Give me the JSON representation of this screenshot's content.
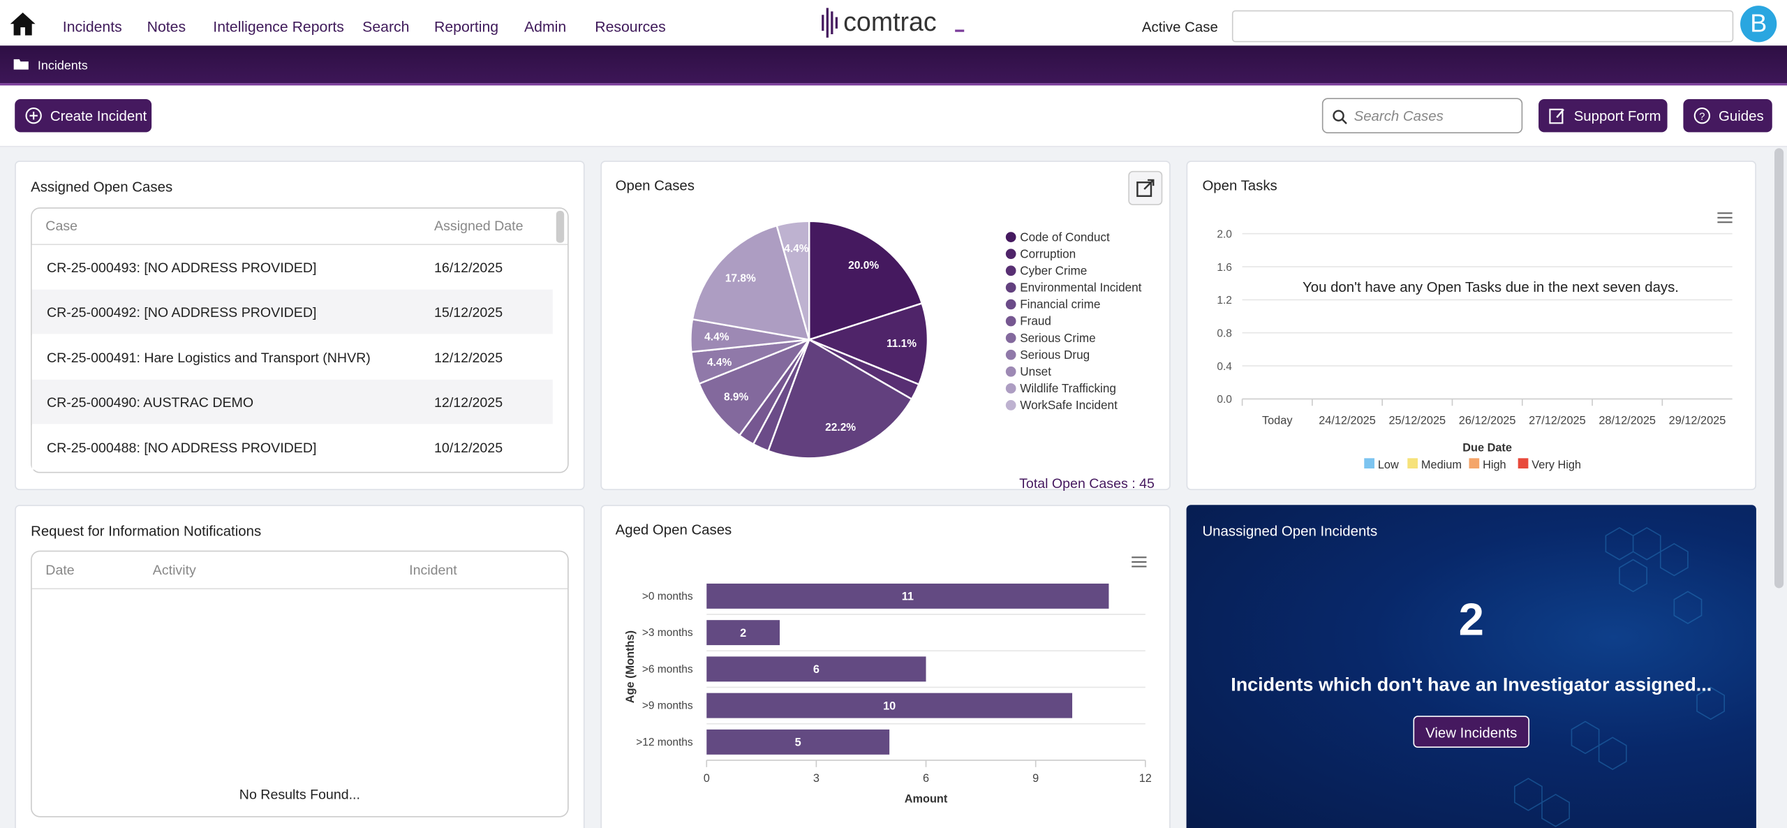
{
  "nav": {
    "items": [
      "Incidents",
      "Notes",
      "Intelligence Reports",
      "Search",
      "Reporting",
      "Admin",
      "Resources"
    ],
    "logo": "comtrac",
    "active_case_label": "Active Case",
    "avatar": "B"
  },
  "breadcrumb": "Incidents",
  "toolbar": {
    "create": "Create Incident",
    "search_placeholder": "Search Cases",
    "support": "Support Form",
    "guides": "Guides"
  },
  "assigned": {
    "title": "Assigned Open Cases",
    "columns": [
      "Case",
      "Assigned Date"
    ],
    "rows": [
      [
        "CR-25-000493: [NO ADDRESS PROVIDED]",
        "16/12/2025"
      ],
      [
        "CR-25-000492: [NO ADDRESS PROVIDED]",
        "15/12/2025"
      ],
      [
        "CR-25-000491: Hare Logistics and Transport (NHVR)",
        "12/12/2025"
      ],
      [
        "CR-25-000490: AUSTRAC DEMO",
        "12/12/2025"
      ],
      [
        "CR-25-000488: [NO ADDRESS PROVIDED]",
        "10/12/2025"
      ]
    ]
  },
  "rfi": {
    "title": "Request for Information Notifications",
    "columns": [
      "Date",
      "Activity",
      "Incident"
    ],
    "empty": "No Results Found..."
  },
  "unassigned": {
    "title": "Unassigned Open Incidents",
    "count": 2,
    "text": "Incidents which don't have an Investigator assigned...",
    "button": "View Incidents"
  },
  "chart_data": [
    {
      "type": "pie",
      "title": "Open Cases",
      "categories": [
        "Code of Conduct",
        "Corruption",
        "Cyber Crime",
        "Environmental Incident",
        "Financial crime",
        "Fraud",
        "Serious Crime",
        "Serious Drug",
        "Unset",
        "Wildlife Trafficking",
        "WorkSafe Incident"
      ],
      "values": [
        20.0,
        11.1,
        2.2,
        22.2,
        2.2,
        2.2,
        8.9,
        4.4,
        4.4,
        17.8,
        4.4
      ],
      "value_labels": [
        "20.0%",
        "11.1%",
        null,
        "22.2%",
        null,
        null,
        "8.9%",
        "4.4%",
        "4.4%",
        "17.8%",
        "4.4%"
      ],
      "colors": [
        "#45195f",
        "#4f2469",
        "#582f73",
        "#62407e",
        "#6b4b88",
        "#765791",
        "#83699d",
        "#9079a9",
        "#9d89b4",
        "#ad9dc2",
        "#beb2d0"
      ],
      "footer": "Total Open Cases : 45"
    },
    {
      "type": "line",
      "title": "Open Tasks",
      "message": "You don't have any Open Tasks due in the next seven days.",
      "categories": [
        "Today",
        "24/12/2025",
        "25/12/2025",
        "26/12/2025",
        "27/12/2025",
        "28/12/2025",
        "29/12/2025"
      ],
      "ylim": [
        0,
        2
      ],
      "yticks": [
        {
          "value": 0,
          "label": "0.0"
        },
        0.4,
        0.8,
        1.2,
        1.6,
        {
          "value": 2,
          "label": "2.0"
        }
      ],
      "x_label": "Due Date",
      "series": [
        {
          "name": "Low",
          "color": "#7cc4f0",
          "values": [
            null,
            null,
            null,
            null,
            null,
            null,
            null
          ]
        },
        {
          "name": "Medium",
          "color": "#f6e27a",
          "values": [
            null,
            null,
            null,
            null,
            null,
            null,
            null
          ]
        },
        {
          "name": "High",
          "color": "#f4a56a",
          "values": [
            null,
            null,
            null,
            null,
            null,
            null,
            null
          ]
        },
        {
          "name": "Very High",
          "color": "#e84a3c",
          "values": [
            null,
            null,
            null,
            null,
            null,
            null,
            null
          ]
        }
      ]
    },
    {
      "type": "bar",
      "orientation": "horizontal",
      "title": "Aged Open Cases",
      "categories": [
        ">0 months",
        ">3 months",
        ">6 months",
        ">9 months",
        ">12 months"
      ],
      "values": [
        11,
        2,
        6,
        10,
        5
      ],
      "color": "#634a82",
      "xlim": [
        0,
        12
      ],
      "xticks": [
        0,
        3,
        6,
        9,
        12
      ],
      "x_label": "Amount",
      "y_label": "Age (Months)"
    }
  ]
}
